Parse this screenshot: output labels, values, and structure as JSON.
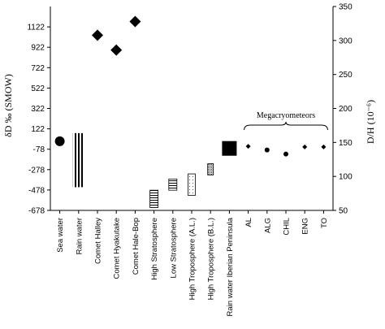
{
  "chart_data": {
    "type": "scatter",
    "ylabel_left": "δD ‰ (SMOW)",
    "ylabel_right": "D/H (10⁻⁶)",
    "left_axis": {
      "ylim": [
        -678,
        1322
      ],
      "ticks": [
        -678,
        -478,
        -278,
        -78,
        122,
        322,
        522,
        722,
        922,
        1122
      ],
      "tick_labels": [
        "-678",
        "-478",
        "-278",
        "-78",
        "122",
        "322",
        "522",
        "722",
        "922",
        "1122"
      ]
    },
    "right_axis": {
      "ylim": [
        50,
        350
      ],
      "ticks": [
        50,
        100,
        150,
        200,
        250,
        300,
        350
      ],
      "tick_labels": [
        "50",
        "100",
        "150",
        "200",
        "250",
        "300",
        "350"
      ]
    },
    "categories": [
      "Sea water",
      "Rain water",
      "Comet Halley",
      "Comet Hyakutake",
      "Comet Hale-Bop",
      "High Stratosphere",
      "Low Stratosphere",
      "High Troposphere (A.L.)",
      "High Troposphere (B.L.)",
      "Rain water Iberian Peninsula",
      "AL",
      "ALG",
      "CHIL",
      "ENG",
      "TO"
    ],
    "points": [
      {
        "category": "Sea water",
        "marker": "circle-large",
        "value": 0
      },
      {
        "category": "Comet Halley",
        "marker": "diamond",
        "value": 1040
      },
      {
        "category": "Comet Hyakutake",
        "marker": "diamond",
        "value": 895
      },
      {
        "category": "Comet Hale-Bop",
        "marker": "diamond",
        "value": 1175
      },
      {
        "category": "Rain water Iberian Peninsula",
        "marker": "square",
        "value": -70
      },
      {
        "category": "AL",
        "marker": "diamond-small",
        "value": -50
      },
      {
        "category": "ALG",
        "marker": "circle-small",
        "value": -85
      },
      {
        "category": "CHIL",
        "marker": "circle-small",
        "value": -125
      },
      {
        "category": "ENG",
        "marker": "diamond-small",
        "value": -55
      },
      {
        "category": "TO",
        "marker": "diamond-small",
        "value": -55
      }
    ],
    "ranges": [
      {
        "category": "Rain water",
        "pattern": "vertical-lines",
        "low": -450,
        "high": 80
      },
      {
        "category": "High Stratosphere",
        "pattern": "horizontal-lines",
        "low": -650,
        "high": -480
      },
      {
        "category": "Low Stratosphere",
        "pattern": "horizontal-lines",
        "low": -480,
        "high": -370
      },
      {
        "category": "High Troposphere (A.L.)",
        "pattern": "dots",
        "low": -530,
        "high": -320
      },
      {
        "category": "High Troposphere (B.L.)",
        "pattern": "dense-dots",
        "low": -330,
        "high": -220
      }
    ],
    "group_annotation": {
      "label": "Megacryometeors",
      "categories": [
        "AL",
        "ALG",
        "CHIL",
        "ENG",
        "TO"
      ]
    }
  }
}
